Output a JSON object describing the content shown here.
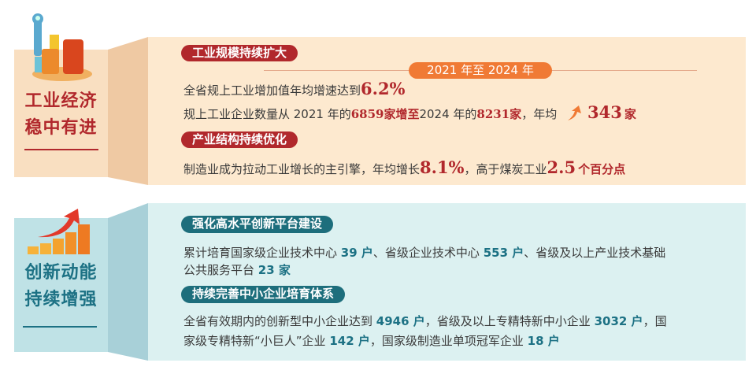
{
  "section1": {
    "title_lines": [
      "工业经济",
      "稳中有进"
    ],
    "icon": "wrench-bar-chart-icon",
    "tag1": "工业规模持续扩大",
    "period": "2021 年至 2024 年",
    "l1": {
      "pre": "全省规上工业增加值年均增速达到",
      "v": "6.2%"
    },
    "l2": {
      "a": "规上工业企业数量从 2021 年的",
      "b": "6859家增至",
      "c": "2024 年的",
      "d": "8231",
      "e": "家",
      "f": "，年均",
      "arrow": "up-arrow-icon",
      "g": "343",
      "h": "家"
    },
    "tag2": "产业结构持续优化",
    "l3": {
      "a": "制造业成为拉动工业增长的主引擎，年均增长",
      "b": "8.1%",
      "c": "，高于煤炭工业",
      "d": "2.5",
      "e": "个百分点"
    },
    "colors": {
      "accent": "#b1282c",
      "orange": "#f07a35",
      "bg": "#fde9cf"
    }
  },
  "section2": {
    "title_lines": [
      "创新动能",
      "持续增强"
    ],
    "icon": "growth-arrow-bars-icon",
    "tag1": "强化高水平创新平台建设",
    "l1": {
      "a": "累计培育国家级企业技术中心",
      "b": "39 户",
      "c": "、省级企业技术中心",
      "d": "553 户",
      "e": "、省级及以上产业技术基础"
    },
    "l2": {
      "a": "公共服务平台",
      "b": "23 家"
    },
    "tag2": "持续完善中小企业培育体系",
    "l3": {
      "a": "全省有效期内的创新型中小企业达到",
      "b": "4946 户",
      "c": "，省级及以上专精特新中小企业",
      "d": "3032 户",
      "e": "，国"
    },
    "l4": {
      "a": "家级专精特新“小巨人”企业",
      "b": "142 户",
      "c": "，国家级制造业单项冠军企业",
      "d": "18 户"
    },
    "colors": {
      "accent": "#1c7184",
      "bg": "#dcf1f1"
    }
  }
}
